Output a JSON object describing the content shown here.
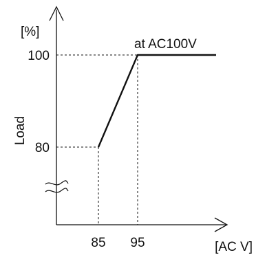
{
  "chart_data": {
    "type": "line",
    "title": "",
    "xlabel": "[AC V]",
    "ylabel": "Load",
    "y_unit": "[%]",
    "x_ticks": [
      "85",
      "95"
    ],
    "y_ticks": [
      "80",
      "100"
    ],
    "y_axis_break": true,
    "grid": false,
    "annotation": "at AC100V",
    "series": [
      {
        "x": [
          85,
          95,
          115
        ],
        "y": [
          80,
          100,
          100
        ]
      }
    ]
  }
}
